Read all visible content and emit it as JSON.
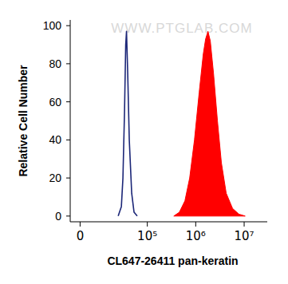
{
  "chart_data": {
    "type": "line",
    "xlabel": "CL647-26411 pan-keratin",
    "ylabel": "Relative Cell Number",
    "annotations": [
      "WWW.PTGLAB.COM"
    ],
    "log": "x",
    "xlim": [
      -4000,
      30000000
    ],
    "xticks": [
      0,
      {
        "value": 100000,
        "label": "10⁵"
      },
      {
        "value": 1000000,
        "label": "10⁶"
      },
      {
        "value": 10000000,
        "label": "10⁷"
      }
    ],
    "ylim": [
      -3,
      103
    ],
    "yticks": [
      0,
      20,
      40,
      60,
      80,
      100
    ],
    "series": [
      {
        "type": "line",
        "color": "#1c2778",
        "x": [
          24400,
          28600,
          30900,
          33400,
          35400,
          36800,
          39000,
          42100,
          47300,
          53000,
          61700
        ],
        "values": [
          0,
          5,
          20,
          55,
          90,
          97,
          75,
          40,
          12,
          2,
          0
        ]
      },
      {
        "type": "area",
        "color": "#ff0000",
        "x": [
          352000,
          459000,
          598000,
          750000,
          942000,
          1180000,
          1430000,
          1600000,
          1790000,
          2000000,
          2330000,
          2810000,
          3390000,
          4260000,
          5760000,
          7790000,
          10500000
        ],
        "values": [
          0,
          2,
          8,
          20,
          40,
          65,
          85,
          93,
          97,
          92,
          75,
          50,
          28,
          12,
          4,
          1,
          0
        ]
      }
    ]
  }
}
